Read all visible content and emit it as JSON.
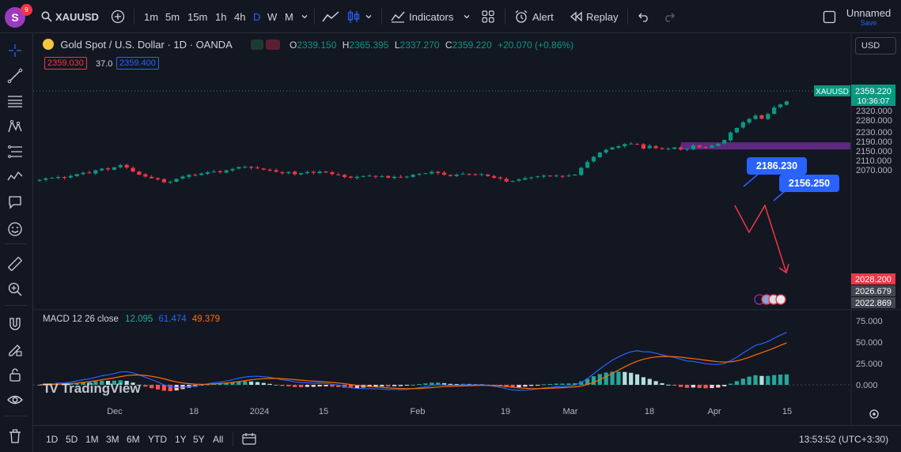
{
  "toolbar": {
    "avatar_letter": "S",
    "badge_count": "9",
    "symbol": "XAUUSD",
    "intervals": [
      "1m",
      "5m",
      "15m",
      "1h",
      "4h",
      "D",
      "W",
      "M"
    ],
    "active_interval": "D",
    "indicators_label": "Indicators",
    "alert_label": "Alert",
    "replay_label": "Replay",
    "layout_name": "Unnamed",
    "save_label": "Save",
    "currency": "USD"
  },
  "legend": {
    "title": "Gold Spot / U.S. Dollar · 1D · OANDA",
    "o_label": "O",
    "o_value": "2339.150",
    "h_label": "H",
    "h_value": "2365.395",
    "l_label": "L",
    "l_value": "2337.270",
    "c_label": "C",
    "c_value": "2359.220",
    "change": "+20.070 (+0.86%)",
    "bid": "2359.030",
    "spread": "37.0",
    "ask": "2359.400"
  },
  "macd_legend": {
    "label": "MACD",
    "params": "12 26 close",
    "hist": "12.095",
    "macd": "61.474",
    "signal": "49.379"
  },
  "bottom": {
    "ranges": [
      "1D",
      "5D",
      "1M",
      "3M",
      "6M",
      "YTD",
      "1Y",
      "5Y",
      "All"
    ],
    "clock": "13:53:52 (UTC+3:30)"
  },
  "watermark": "TradingView",
  "chart_data": [
    {
      "type": "candlestick",
      "title": "Gold Spot / U.S. Dollar · 1D · OANDA",
      "ylim": [
        2012,
        2385
      ],
      "y_ticks": [
        2320,
        2280,
        2230,
        2190,
        2150,
        2110,
        2070
      ],
      "y_tick_labels": [
        "2320.000",
        "2280.000",
        "2230.000",
        "2190.000",
        "2150.000",
        "2110.000",
        "2070.000"
      ],
      "x_tick_labels": [
        "Dec",
        "18",
        "2024",
        "15",
        "Feb",
        "19",
        "Mar",
        "18",
        "Apr",
        "15"
      ],
      "price_labels": [
        {
          "label": "XAUUSD",
          "value": "2359.220",
          "timer": "10:36:07",
          "color": "#089981"
        },
        {
          "value": "2028.200",
          "color": "#f23645"
        },
        {
          "value": "2026.679",
          "color": "#434651"
        },
        {
          "value": "2022.869",
          "color": "#434651"
        }
      ],
      "annotations": [
        {
          "text": "2186.230",
          "color": "#2962ff"
        },
        {
          "text": "2156.250",
          "color": "#2962ff"
        }
      ],
      "zone": {
        "from": 2156.25,
        "to": 2186.23,
        "color": "#6b2d8f"
      },
      "colors": {
        "up": "#089981",
        "down": "#f23645"
      },
      "closes": [
        2028,
        2034,
        2037,
        2040,
        2036,
        2045,
        2052,
        2058,
        2056,
        2068,
        2075,
        2072,
        2081,
        2090,
        2080,
        2063,
        2050,
        2042,
        2035,
        2030,
        2018,
        2020,
        2032,
        2042,
        2049,
        2047,
        2055,
        2060,
        2063,
        2060,
        2068,
        2074,
        2082,
        2083,
        2079,
        2077,
        2071,
        2067,
        2062,
        2056,
        2061,
        2052,
        2056,
        2061,
        2058,
        2063,
        2059,
        2052,
        2049,
        2040,
        2037,
        2041,
        2044,
        2046,
        2041,
        2043,
        2037,
        2041,
        2038,
        2042,
        2050,
        2053,
        2056,
        2062,
        2057,
        2050,
        2044,
        2050,
        2054,
        2052,
        2049,
        2052,
        2044,
        2037,
        2034,
        2021,
        2023,
        2030,
        2035,
        2038,
        2043,
        2046,
        2043,
        2046,
        2043,
        2046,
        2050,
        2079,
        2104,
        2125,
        2143,
        2155,
        2165,
        2170,
        2179,
        2181,
        2178,
        2160,
        2172,
        2162,
        2158,
        2160,
        2165,
        2156,
        2158,
        2173,
        2165,
        2165,
        2172,
        2180,
        2196,
        2228,
        2247,
        2271,
        2285,
        2299,
        2286,
        2306,
        2333,
        2346,
        2359
      ]
    },
    {
      "type": "macd",
      "title": "MACD 12 26 close",
      "y_ticks": [
        75,
        50,
        25,
        0
      ],
      "y_tick_labels": [
        "75.000",
        "50.000",
        "25.000",
        "0.000"
      ],
      "series": [
        {
          "name": "Histogram",
          "latest": 12.095
        },
        {
          "name": "MACD",
          "latest": 61.474,
          "color": "#2962ff"
        },
        {
          "name": "Signal",
          "latest": 49.379,
          "color": "#ff6d00"
        }
      ]
    }
  ]
}
